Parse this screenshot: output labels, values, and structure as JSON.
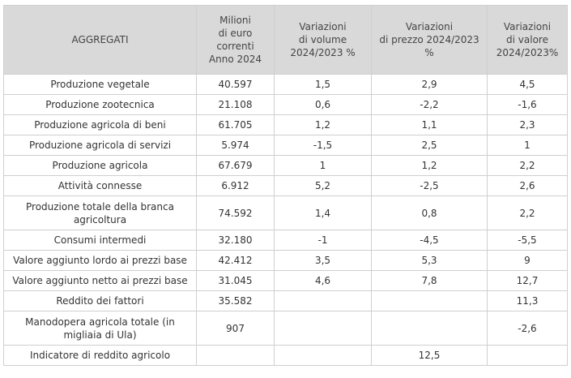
{
  "table": {
    "headers": [
      [
        "AGGREGATI"
      ],
      [
        "Milioni",
        "di euro",
        "correnti",
        "Anno 2024"
      ],
      [
        "Variazioni",
        "di volume",
        "2024/2023 %"
      ],
      [
        "Variazioni",
        "di prezzo 2024/2023",
        "%"
      ],
      [
        "Variazioni",
        "di valore",
        "2024/2023%"
      ]
    ],
    "rows": [
      {
        "label": "Produzione vegetale",
        "value": "40.597",
        "volume": "1,5",
        "price": "2,9",
        "valore": "4,5"
      },
      {
        "label": "Produzione zootecnica",
        "value": "21.108",
        "volume": "0,6",
        "price": "-2,2",
        "valore": "-1,6"
      },
      {
        "label": "Produzione agricola di beni",
        "value": "61.705",
        "volume": "1,2",
        "price": "1,1",
        "valore": "2,3"
      },
      {
        "label": "Produzione agricola di servizi",
        "value": "5.974",
        "volume": "-1,5",
        "price": "2,5",
        "valore": "1"
      },
      {
        "label": "Produzione agricola",
        "value": "67.679",
        "volume": "1",
        "price": "1,2",
        "valore": "2,2"
      },
      {
        "label": "Attività connesse",
        "value": "6.912",
        "volume": "5,2",
        "price": "-2,5",
        "valore": "2,6"
      },
      {
        "label": "Produzione totale della branca agricoltura",
        "value": "74.592",
        "volume": "1,4",
        "price": "0,8",
        "valore": "2,2"
      },
      {
        "label": "Consumi intermedi",
        "value": "32.180",
        "volume": "-1",
        "price": "-4,5",
        "valore": "-5,5"
      },
      {
        "label": "Valore aggiunto lordo ai prezzi base",
        "value": "42.412",
        "volume": "3,5",
        "price": "5,3",
        "valore": "9"
      },
      {
        "label": "Valore aggiunto netto ai prezzi base",
        "value": "31.045",
        "volume": "4,6",
        "price": "7,8",
        "valore": "12,7"
      },
      {
        "label": "Reddito dei fattori",
        "value": "35.582",
        "volume": "",
        "price": "",
        "valore": "11,3"
      },
      {
        "label": "Manodopera agricola totale (in migliaia di Ula)",
        "value": "907",
        "volume": "",
        "price": "",
        "valore": "-2,6"
      },
      {
        "label": "Indicatore di reddito agricolo",
        "value": "",
        "volume": "",
        "price": "12,5",
        "valore": ""
      }
    ]
  }
}
